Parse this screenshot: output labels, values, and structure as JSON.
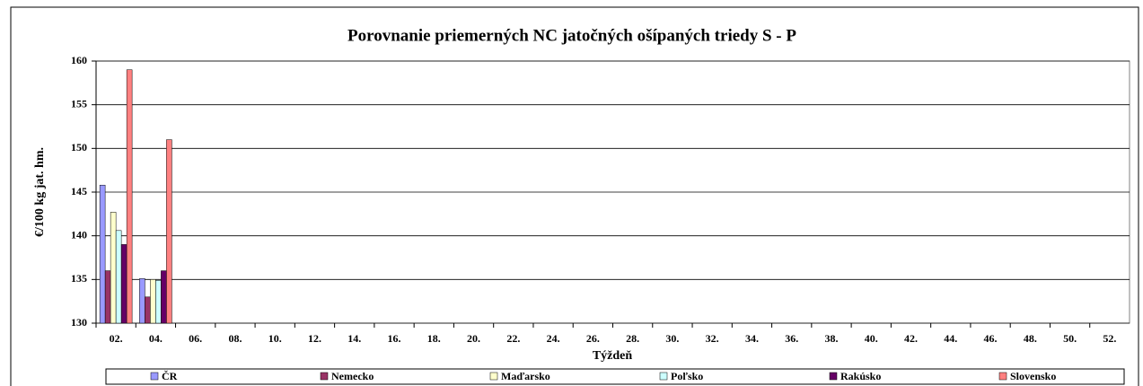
{
  "chart_data": {
    "type": "bar",
    "title": "Porovnanie priemerných NC jatočných ošípaných triedy S - P",
    "x_label": "Týždeň",
    "y_label": "€/100 kg jat. hm.",
    "categories": [
      "02.",
      "04.",
      "06.",
      "08.",
      "10.",
      "12.",
      "14.",
      "16.",
      "18.",
      "20.",
      "22.",
      "24.",
      "26.",
      "28.",
      "30.",
      "32.",
      "34.",
      "36.",
      "38.",
      "40.",
      "42.",
      "44.",
      "46.",
      "48.",
      "50.",
      "52."
    ],
    "series": [
      {
        "name": "ČR",
        "color": "#9999ff",
        "values": [
          145.8,
          135.1,
          null,
          null,
          null,
          null,
          null,
          null,
          null,
          null,
          null,
          null,
          null,
          null,
          null,
          null,
          null,
          null,
          null,
          null,
          null,
          null,
          null,
          null,
          null,
          null
        ]
      },
      {
        "name": "Nemecko",
        "color": "#993366",
        "values": [
          136,
          133,
          null,
          null,
          null,
          null,
          null,
          null,
          null,
          null,
          null,
          null,
          null,
          null,
          null,
          null,
          null,
          null,
          null,
          null,
          null,
          null,
          null,
          null,
          null,
          null
        ]
      },
      {
        "name": "Maďarsko",
        "color": "#ffffcc",
        "values": [
          142.7,
          135,
          null,
          null,
          null,
          null,
          null,
          null,
          null,
          null,
          null,
          null,
          null,
          null,
          null,
          null,
          null,
          null,
          null,
          null,
          null,
          null,
          null,
          null,
          null,
          null
        ]
      },
      {
        "name": "Poľsko",
        "color": "#ccffff",
        "values": [
          140.6,
          134.9,
          null,
          null,
          null,
          null,
          null,
          null,
          null,
          null,
          null,
          null,
          null,
          null,
          null,
          null,
          null,
          null,
          null,
          null,
          null,
          null,
          null,
          null,
          null,
          null
        ]
      },
      {
        "name": "Rakúsko",
        "color": "#660066",
        "values": [
          139,
          136,
          null,
          null,
          null,
          null,
          null,
          null,
          null,
          null,
          null,
          null,
          null,
          null,
          null,
          null,
          null,
          null,
          null,
          null,
          null,
          null,
          null,
          null,
          null,
          null
        ]
      },
      {
        "name": "Slovensko",
        "color": "#ff8080",
        "values": [
          159,
          151,
          null,
          null,
          null,
          null,
          null,
          null,
          null,
          null,
          null,
          null,
          null,
          null,
          null,
          null,
          null,
          null,
          null,
          null,
          null,
          null,
          null,
          null,
          null,
          null
        ]
      }
    ],
    "ylim": [
      130,
      160
    ],
    "yticks": [
      130,
      135,
      140,
      145,
      150,
      155,
      160
    ],
    "grid": true,
    "legend": "bottom"
  }
}
